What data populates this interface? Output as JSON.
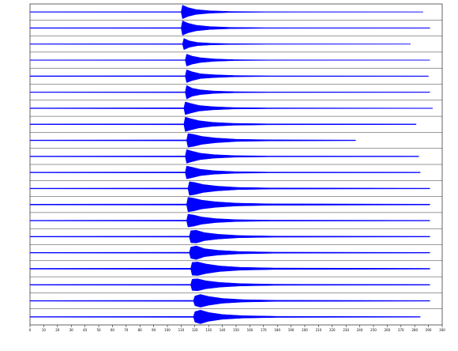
{
  "chart_data": {
    "type": "record-section",
    "color": "#0000ff",
    "xlim": [
      0,
      300
    ],
    "ylim": [
      -1,
      1
    ],
    "xticks": [
      0,
      10,
      20,
      30,
      40,
      50,
      60,
      70,
      80,
      90,
      100,
      110,
      120,
      130,
      140,
      150,
      160,
      170,
      180,
      190,
      200,
      210,
      220,
      230,
      240,
      250,
      260,
      270,
      280,
      290,
      300
    ],
    "series": [
      {
        "x": [
          0,
          110,
          111,
          115,
          121,
          131,
          146,
          171,
          286
        ],
        "values": [
          0.03,
          0.04,
          0.85,
          0.55,
          0.3,
          0.15,
          0.06,
          0.03,
          0.02
        ]
      },
      {
        "x": [
          0,
          110,
          111,
          115,
          121,
          131,
          146,
          171,
          291
        ],
        "values": [
          0.04,
          0.05,
          0.9,
          0.6,
          0.35,
          0.18,
          0.08,
          0.04,
          0.03
        ]
      },
      {
        "x": [
          0,
          111,
          112,
          116,
          122,
          132,
          147,
          172,
          277
        ],
        "values": [
          0.03,
          0.04,
          0.7,
          0.4,
          0.2,
          0.1,
          0.05,
          0.03,
          0.02
        ]
      },
      {
        "x": [
          0,
          113,
          114,
          118,
          124,
          134,
          149,
          174,
          291
        ],
        "values": [
          0.03,
          0.04,
          0.75,
          0.5,
          0.3,
          0.15,
          0.06,
          0.03,
          0.02
        ]
      },
      {
        "x": [
          0,
          113,
          114,
          118,
          124,
          134,
          149,
          174,
          290
        ],
        "values": [
          0.04,
          0.05,
          0.8,
          0.55,
          0.3,
          0.18,
          0.08,
          0.04,
          0.03
        ]
      },
      {
        "x": [
          0,
          113,
          114,
          118,
          124,
          134,
          149,
          174,
          291
        ],
        "values": [
          0.03,
          0.05,
          0.85,
          0.5,
          0.3,
          0.15,
          0.07,
          0.04,
          0.03
        ]
      },
      {
        "x": [
          0,
          112,
          113,
          117,
          123,
          133,
          148,
          173,
          293
        ],
        "values": [
          0.04,
          0.06,
          0.8,
          0.6,
          0.35,
          0.2,
          0.09,
          0.05,
          0.03
        ]
      },
      {
        "x": [
          0,
          112,
          113,
          117,
          123,
          133,
          148,
          173,
          281
        ],
        "values": [
          0.04,
          0.06,
          0.9,
          0.7,
          0.45,
          0.25,
          0.12,
          0.06,
          0.04
        ]
      },
      {
        "x": [
          0,
          114,
          115,
          119,
          125,
          135,
          150,
          175,
          237
        ],
        "values": [
          0.04,
          0.06,
          0.85,
          0.75,
          0.5,
          0.3,
          0.14,
          0.07,
          0.04
        ]
      },
      {
        "x": [
          0,
          113,
          114,
          118,
          124,
          134,
          149,
          174,
          283
        ],
        "values": [
          0.04,
          0.06,
          0.85,
          0.65,
          0.4,
          0.22,
          0.1,
          0.05,
          0.04
        ]
      },
      {
        "x": [
          0,
          113,
          114,
          118,
          124,
          134,
          149,
          174,
          284
        ],
        "values": [
          0.04,
          0.06,
          0.8,
          0.65,
          0.4,
          0.22,
          0.1,
          0.05,
          0.04
        ]
      },
      {
        "x": [
          0,
          115,
          116,
          120,
          126,
          136,
          151,
          176,
          291
        ],
        "values": [
          0.04,
          0.06,
          0.85,
          0.75,
          0.5,
          0.3,
          0.14,
          0.07,
          0.04
        ]
      },
      {
        "x": [
          0,
          114,
          115,
          119,
          125,
          135,
          150,
          175,
          291
        ],
        "values": [
          0.05,
          0.07,
          0.9,
          0.8,
          0.55,
          0.35,
          0.18,
          0.09,
          0.05
        ]
      },
      {
        "x": [
          0,
          114,
          115,
          119,
          125,
          135,
          150,
          175,
          291
        ],
        "values": [
          0.04,
          0.06,
          0.8,
          0.7,
          0.45,
          0.25,
          0.12,
          0.06,
          0.04
        ]
      },
      {
        "x": [
          0,
          116,
          117,
          121,
          127,
          137,
          152,
          177,
          291
        ],
        "values": [
          0.04,
          0.06,
          0.75,
          0.8,
          0.5,
          0.3,
          0.14,
          0.07,
          0.04
        ]
      },
      {
        "x": [
          0,
          116,
          117,
          121,
          127,
          137,
          152,
          177,
          291
        ],
        "values": [
          0.04,
          0.06,
          0.7,
          0.85,
          0.5,
          0.3,
          0.15,
          0.07,
          0.04
        ]
      },
      {
        "x": [
          0,
          117,
          118,
          122,
          128,
          138,
          153,
          178,
          291
        ],
        "values": [
          0.05,
          0.07,
          0.8,
          0.85,
          0.6,
          0.35,
          0.18,
          0.09,
          0.05
        ]
      },
      {
        "x": [
          0,
          117,
          118,
          122,
          128,
          138,
          153,
          178,
          291
        ],
        "values": [
          0.04,
          0.06,
          0.7,
          0.75,
          0.5,
          0.3,
          0.15,
          0.07,
          0.04
        ]
      },
      {
        "x": [
          0,
          119,
          120,
          124,
          130,
          140,
          155,
          180,
          291
        ],
        "values": [
          0.04,
          0.06,
          0.6,
          0.8,
          0.55,
          0.3,
          0.15,
          0.07,
          0.04
        ]
      },
      {
        "x": [
          0,
          119,
          120,
          124,
          130,
          140,
          155,
          180,
          284
        ],
        "values": [
          0.04,
          0.06,
          0.65,
          0.85,
          0.55,
          0.3,
          0.15,
          0.07,
          0.04
        ]
      }
    ]
  }
}
